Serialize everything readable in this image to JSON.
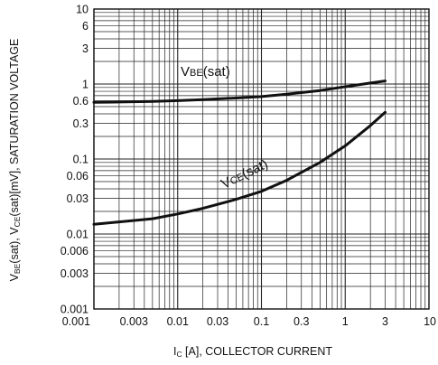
{
  "chart_data": {
    "type": "line",
    "x_scale": "log",
    "y_scale": "log",
    "xlim": [
      0.001,
      10
    ],
    "ylim": [
      0.001,
      10
    ],
    "x_ticks": [
      "0.001",
      "0.003",
      "0.01",
      "0.03",
      "0.1",
      "0.3",
      "1",
      "3",
      "10"
    ],
    "y_ticks": [
      "10",
      "6",
      "3",
      "1",
      "0.6",
      "0.3",
      "0.1",
      "0.06",
      "0.03",
      "0.01",
      "0.006",
      "0.003",
      "0.001"
    ],
    "grid": true,
    "xlabel": {
      "main": "I",
      "sub": "C",
      "rest": " [A], COLLECTOR CURRENT"
    },
    "ylabel": {
      "p1": "V",
      "s1": "BE",
      "p2": "(sat), V",
      "s2": "CE",
      "p3": "(sat)[mV], SATURATION VOLTAGE"
    },
    "series": [
      {
        "name": "VBE(sat)",
        "label_main": "V",
        "label_sub": "BE",
        "label_rest": "(sat)",
        "x": [
          0.001,
          0.002,
          0.005,
          0.01,
          0.02,
          0.05,
          0.1,
          0.2,
          0.5,
          1,
          2,
          3
        ],
        "y": [
          0.57,
          0.575,
          0.585,
          0.6,
          0.62,
          0.65,
          0.68,
          0.73,
          0.82,
          0.92,
          1.03,
          1.1
        ]
      },
      {
        "name": "VCE(sat)",
        "label_main": "V",
        "label_sub": "CE",
        "label_rest": "(sat)",
        "x": [
          0.001,
          0.002,
          0.005,
          0.01,
          0.02,
          0.05,
          0.1,
          0.2,
          0.5,
          1,
          2,
          3
        ],
        "y": [
          0.0135,
          0.0145,
          0.016,
          0.0185,
          0.022,
          0.029,
          0.037,
          0.052,
          0.09,
          0.15,
          0.28,
          0.42
        ]
      }
    ]
  }
}
